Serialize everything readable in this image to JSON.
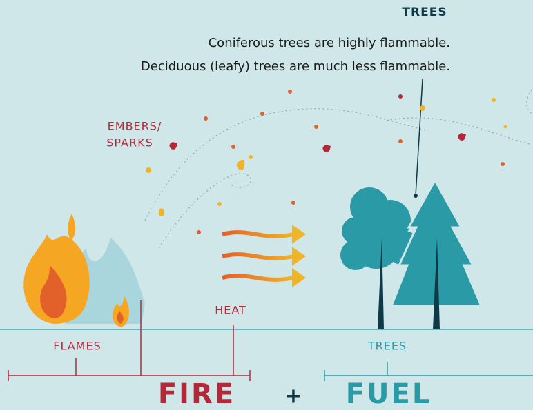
{
  "callout": {
    "title": "TREES",
    "lines": [
      "Coniferous trees are highly flammable.",
      "Deciduous (leafy) trees are much less flammable."
    ]
  },
  "labels": {
    "embers": [
      "EMBERS/",
      "SPARKS"
    ],
    "heat": "HEAT",
    "flames": "FLAMES",
    "trees": "TREES"
  },
  "equation": {
    "fire": "FIRE",
    "plus": "+",
    "fuel": "FUEL"
  }
}
